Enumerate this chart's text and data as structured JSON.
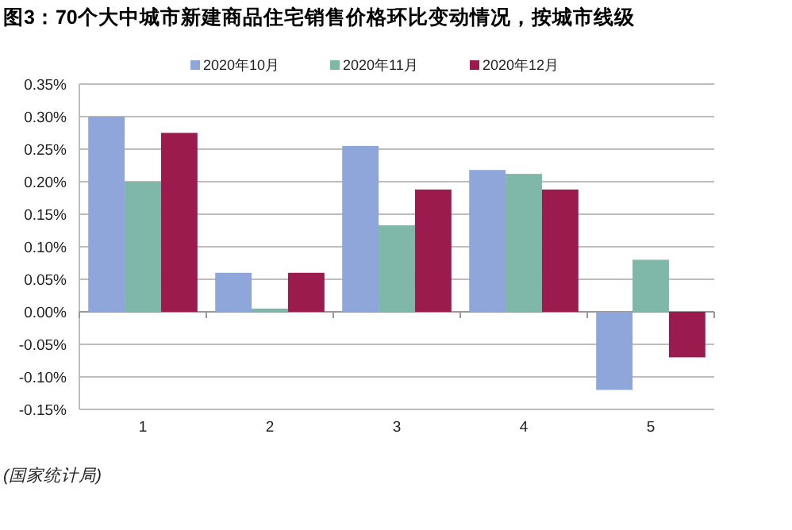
{
  "chart_data": {
    "type": "bar",
    "title": "图3：70个大中城市新建商品住宅销售价格环比变动情况，按城市线级",
    "categories": [
      "1",
      "2",
      "3",
      "4",
      "5"
    ],
    "series": [
      {
        "name": "2020年10月",
        "color": "#8ea6d9",
        "values": [
          0.3,
          0.06,
          0.255,
          0.218,
          -0.12
        ]
      },
      {
        "name": "2020年11月",
        "color": "#7fb8a8",
        "values": [
          0.2,
          0.005,
          0.133,
          0.212,
          0.08
        ]
      },
      {
        "name": "2020年12月",
        "color": "#9b1b4e",
        "values": [
          0.275,
          0.06,
          0.188,
          0.188,
          -0.07
        ]
      }
    ],
    "ylim": [
      -0.15,
      0.35
    ],
    "yticks": [
      {
        "value": -0.15,
        "label": "-0.15%"
      },
      {
        "value": -0.1,
        "label": "-0.10%"
      },
      {
        "value": -0.05,
        "label": "-0.05%"
      },
      {
        "value": 0,
        "label": "0.00%"
      },
      {
        "value": 0.05,
        "label": "0.05%"
      },
      {
        "value": 0.1,
        "label": "0.10%"
      },
      {
        "value": 0.15,
        "label": "0.15%"
      },
      {
        "value": 0.2,
        "label": "0.20%"
      },
      {
        "value": 0.25,
        "label": "0.25%"
      },
      {
        "value": 0.3,
        "label": "0.30%"
      },
      {
        "value": 0.35,
        "label": "0.35%"
      }
    ],
    "grid": "y",
    "legend": "top",
    "annotations": [
      "(国家统计局)"
    ]
  }
}
